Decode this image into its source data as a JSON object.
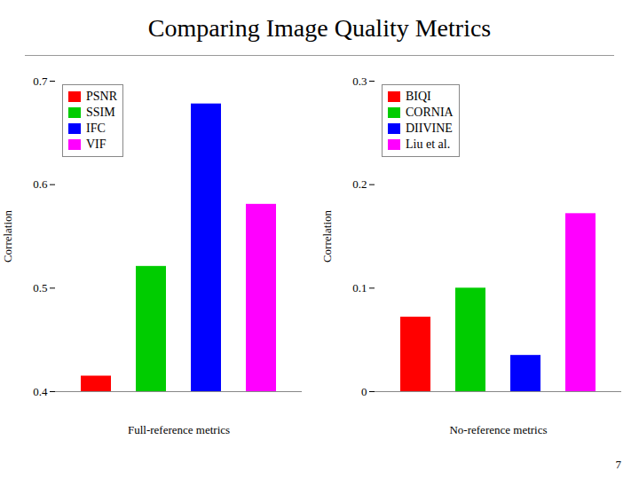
{
  "title": "Comparing Image Quality Metrics",
  "annotations": [
    "7"
  ],
  "chart_data": [
    {
      "type": "bar",
      "xlabel": "Full-reference metrics",
      "ylabel": "Correlation",
      "categories": [
        "PSNR",
        "SSIM",
        "IFC",
        "VIF"
      ],
      "values": [
        0.415,
        0.521,
        0.678,
        0.581
      ],
      "colors": [
        "#FF0000",
        "#00CC00",
        "#0000FF",
        "#FF00FF"
      ],
      "ylim": [
        0.4,
        0.7
      ],
      "yticks": [
        0.4,
        0.5,
        0.6,
        0.7
      ],
      "legend": "upper left",
      "tick_labels": "y",
      "grid": false
    },
    {
      "type": "bar",
      "xlabel": "No-reference metrics",
      "ylabel": "Correlation",
      "categories": [
        "BIQI",
        "CORNIA",
        "DIIVINE",
        "Liu et al."
      ],
      "values": [
        0.072,
        0.1,
        0.035,
        0.172
      ],
      "colors": [
        "#FF0000",
        "#00CC00",
        "#0000FF",
        "#FF00FF"
      ],
      "ylim": [
        0,
        0.3
      ],
      "yticks": [
        0,
        0.1,
        0.2,
        0.3
      ],
      "legend": "upper left",
      "tick_labels": "y",
      "grid": false
    }
  ]
}
